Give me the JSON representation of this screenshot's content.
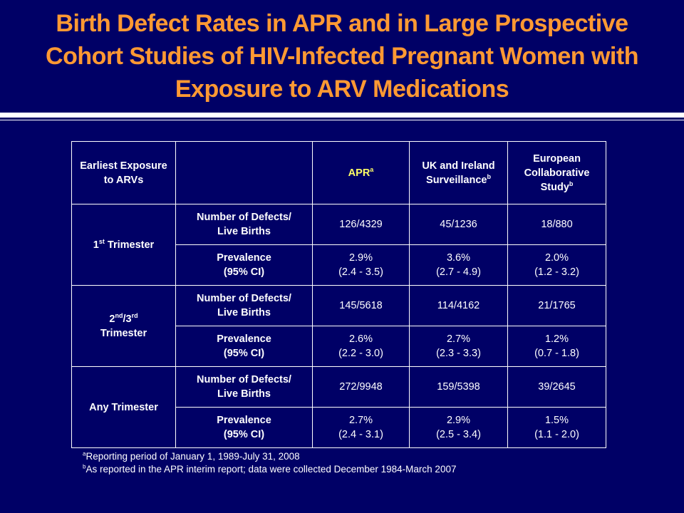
{
  "title": {
    "line1": "Birth Defect Rates in APR and in Large Prospective",
    "line2": "Cohort Studies of HIV-Infected Pregnant Women with",
    "line3": "Exposure to ARV Medications"
  },
  "table": {
    "headers": {
      "exposure": "Earliest Exposure to ARVs",
      "blank": "",
      "apr": "APR",
      "apr_sup": "a",
      "uk": "UK and Ireland Surveillance",
      "uk_sup": "b",
      "euro": "European Collaborative Study",
      "euro_sup": "b"
    },
    "groups": [
      {
        "label_main": "1",
        "label_sup": "st",
        "label_rest": " Trimester",
        "defects_label_1": "Number of Defects/",
        "defects_label_2": "Live Births",
        "defects": {
          "apr": "126/4329",
          "uk": "45/1236",
          "euro": "18/880"
        },
        "prev_label_1": "Prevalence",
        "prev_label_2": "(95% CI)",
        "prevalence": {
          "apr": "2.9%",
          "apr_ci": "(2.4 - 3.5)",
          "uk": "3.6%",
          "uk_ci": "(2.7 - 4.9)",
          "euro": "2.0%",
          "euro_ci": "(1.2 - 3.2)"
        }
      },
      {
        "label_a": "2",
        "label_a_sup": "nd",
        "label_b": "/3",
        "label_b_sup": "rd",
        "label_rest": "Trimester",
        "defects_label_1": "Number of Defects/",
        "defects_label_2": "Live Births",
        "defects": {
          "apr": "145/5618",
          "uk": "114/4162",
          "euro": "21/1765"
        },
        "prev_label_1": "Prevalence",
        "prev_label_2": "(95% CI)",
        "prevalence": {
          "apr": "2.6%",
          "apr_ci": "(2.2 - 3.0)",
          "uk": "2.7%",
          "uk_ci": "(2.3 - 3.3)",
          "euro": "1.2%",
          "euro_ci": "(0.7 - 1.8)"
        }
      },
      {
        "label_main": "Any Trimester",
        "defects_label_1": "Number of Defects/",
        "defects_label_2": "Live Births",
        "defects": {
          "apr": "272/9948",
          "uk": "159/5398",
          "euro": "39/2645"
        },
        "prev_label_1": "Prevalence",
        "prev_label_2": "(95% CI)",
        "prevalence": {
          "apr": "2.7%",
          "apr_ci": "(2.4 - 3.1)",
          "uk": "2.9%",
          "uk_ci": "(2.5 - 3.4)",
          "euro": "1.5%",
          "euro_ci": "(1.1 - 2.0)"
        }
      }
    ]
  },
  "footnotes": {
    "a_mark": "a",
    "a_text": "Reporting period of January 1, 1989-July 31, 2008",
    "b_mark": "b",
    "b_text": "As reported in the APR interim report; data were collected December 1984-March 2007"
  },
  "colors": {
    "background": "#000066",
    "title": "#ff9933",
    "apr_highlight": "#ffff66",
    "text": "#ffffff"
  }
}
